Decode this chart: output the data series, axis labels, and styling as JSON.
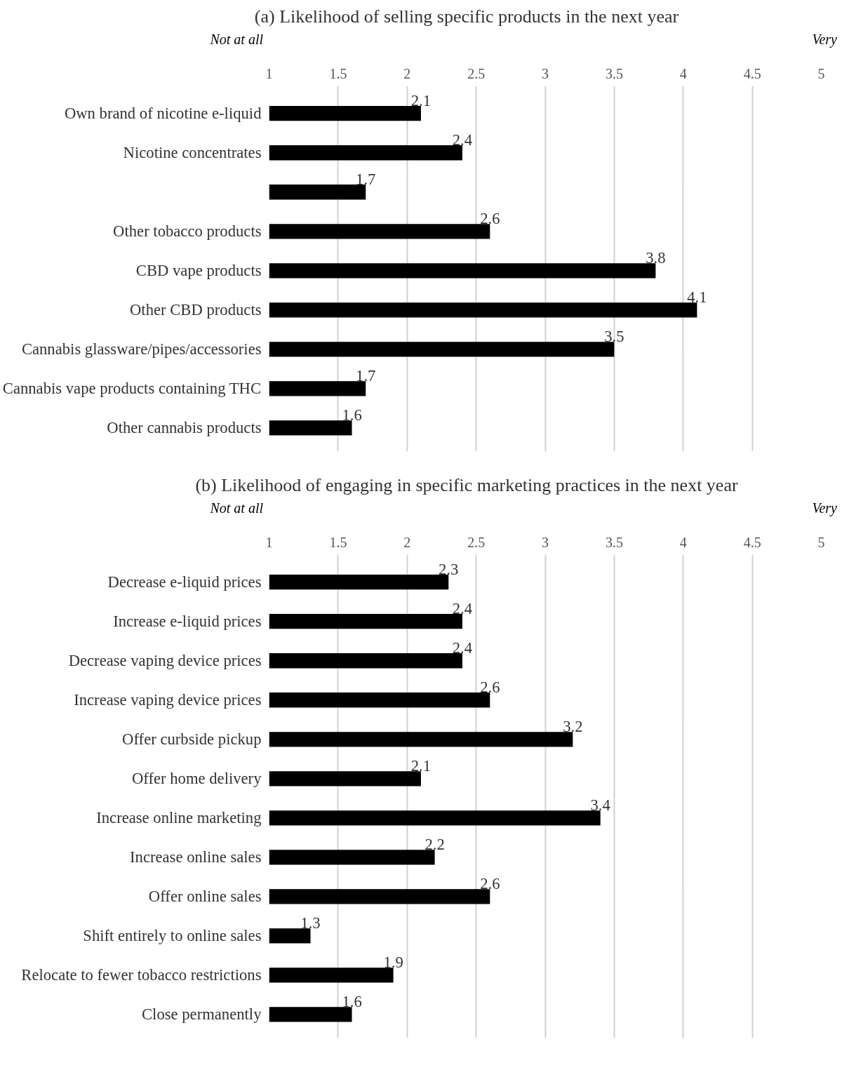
{
  "chart_data": [
    {
      "type": "bar",
      "orientation": "horizontal",
      "title": "(a)  Likelihood of selling specific products in the next year",
      "categories": [
        "Own brand of nicotine e-liquid",
        "Nicotine concentrates",
        null,
        "Other tobacco products",
        "CBD vape products",
        "Other CBD products",
        "Cannabis glassware/pipes/accessories",
        "Cannabis vape products containing THC",
        "Other cannabis products"
      ],
      "values": [
        2.1,
        2.4,
        1.7,
        2.6,
        3.8,
        4.1,
        3.5,
        1.7,
        1.6
      ],
      "color": "#000000",
      "xlim": [
        1,
        5
      ],
      "xticks": [
        1,
        1.5,
        2,
        2.5,
        3,
        3.5,
        4,
        4.5,
        5
      ],
      "grid": "x",
      "data_labels": true,
      "annotations": [
        "Not at all",
        "Very"
      ]
    },
    {
      "type": "bar",
      "orientation": "horizontal",
      "title": "(b)  Likelihood of engaging in specific marketing practices in the next year",
      "categories": [
        "Decrease e-liquid prices",
        "Increase e-liquid prices",
        "Decrease vaping device prices",
        "Increase vaping device prices",
        "Offer curbside pickup",
        "Offer home delivery",
        "Increase online marketing",
        "Increase online sales",
        "Offer online sales",
        "Shift entirely to online sales",
        "Relocate to fewer tobacco restrictions",
        "Close permanently"
      ],
      "values": [
        2.3,
        2.4,
        2.4,
        2.6,
        3.2,
        2.1,
        3.4,
        2.2,
        2.6,
        1.3,
        1.9,
        1.6
      ],
      "color": "#000000",
      "xlim": [
        1,
        5
      ],
      "xticks": [
        1,
        1.5,
        2,
        2.5,
        3,
        3.5,
        4,
        4.5,
        5
      ],
      "grid": "x",
      "data_labels": true,
      "annotations": [
        "Not at all",
        "Very"
      ]
    }
  ]
}
